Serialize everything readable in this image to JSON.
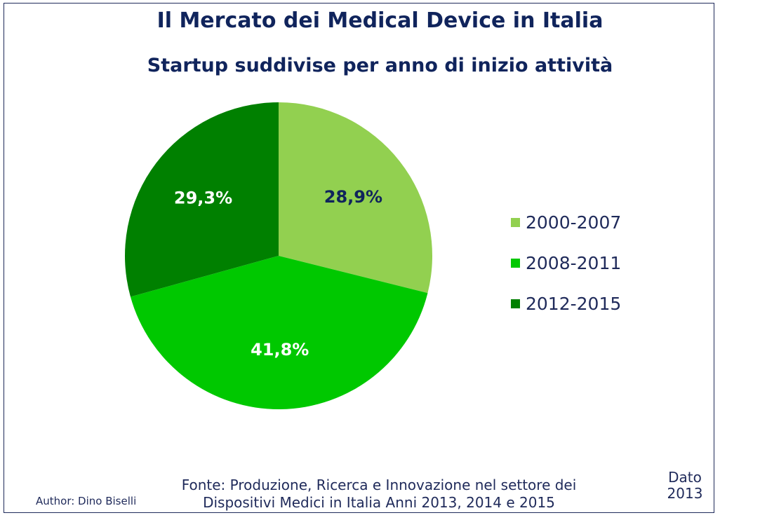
{
  "title": "Il Mercato dei Medical Device in Italia",
  "subtitle": "Startup suddivise per anno di inizio attività",
  "chart_data": {
    "type": "pie",
    "title": "Il Mercato dei Medical Device in Italia",
    "subtitle": "Startup suddivise per anno di inizio attività",
    "categories": [
      "2000-2007",
      "2008-2011",
      "2012-2015"
    ],
    "values": [
      28.9,
      41.8,
      29.3
    ],
    "data_labels": [
      "28,9%",
      "41,8%",
      "29,3%"
    ],
    "colors": [
      "#92d050",
      "#00c800",
      "#008000"
    ],
    "label_colors": [
      "#10245c",
      "#ffffff",
      "#ffffff"
    ],
    "legend_position": "right",
    "start": "12 o'clock, clockwise"
  },
  "legend": [
    "2000-2007",
    "2008-2011",
    "2012-2015"
  ],
  "source": {
    "line1": "Fonte: Produzione, Ricerca e Innovazione nel settore dei",
    "line2": "Dispositivi Medici in Italia  Anni 2013, 2014 e 2015"
  },
  "author": "Author: Dino Biselli",
  "dato": {
    "line1": "Dato",
    "line2": "2013"
  }
}
